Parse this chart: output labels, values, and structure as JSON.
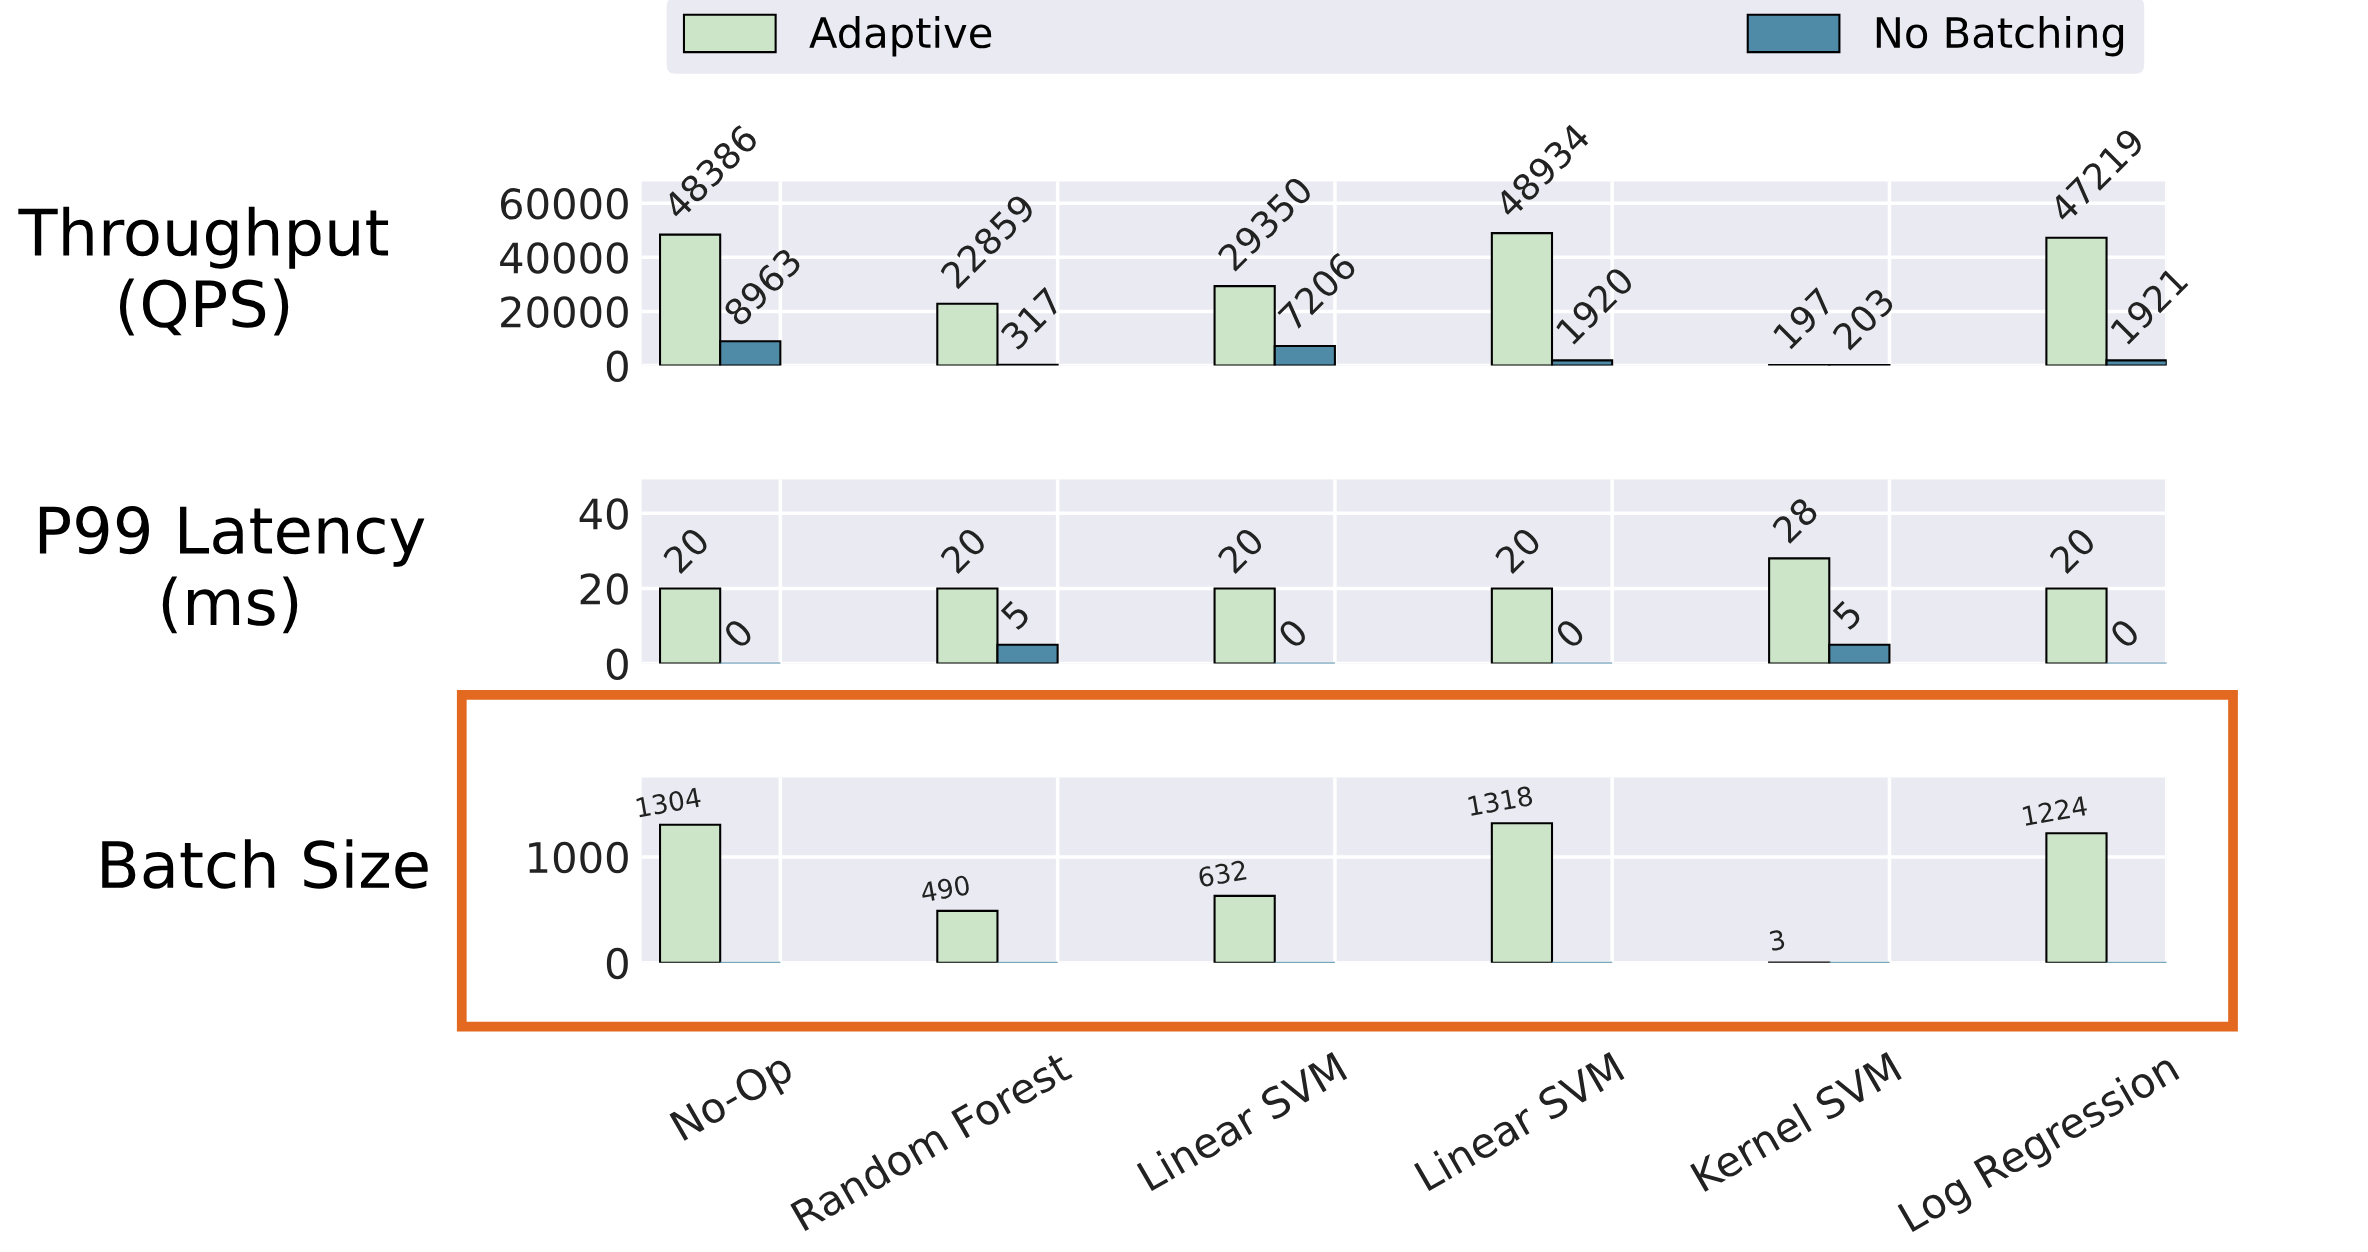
{
  "chart_data": [
    {
      "type": "bar",
      "ylabel": "Throughput\n(QPS)",
      "categories": [
        null,
        null,
        null,
        null,
        null,
        null
      ],
      "series": [
        {
          "name": "Adaptive",
          "color": "#cce5c8",
          "values": [
            48386,
            22859,
            29350,
            48934,
            197,
            47219
          ]
        },
        {
          "name": "No Batching",
          "color": "#4f8aa6",
          "values": [
            8963,
            317,
            7206,
            1920,
            203,
            1921
          ]
        }
      ],
      "ylim": [
        0,
        68000
      ],
      "yticks": [
        0,
        20000,
        40000,
        60000
      ],
      "grid": true,
      "legend": "top",
      "tick_labels": "y",
      "data_labels": true
    },
    {
      "type": "bar",
      "ylabel": "P99 Latency\n(ms)",
      "categories": [
        null,
        null,
        null,
        null,
        null,
        null
      ],
      "series": [
        {
          "color": "#cce5c8",
          "values": [
            20,
            20,
            20,
            20,
            28,
            20
          ]
        },
        {
          "color": "#4f8aa6",
          "values": [
            0,
            5,
            0,
            0,
            5,
            0
          ]
        }
      ],
      "ylim": [
        0,
        49
      ],
      "yticks": [
        0,
        20,
        40
      ],
      "grid": true,
      "tick_labels": "y",
      "data_labels": true
    },
    {
      "type": "bar",
      "ylabel": "Batch Size",
      "categories": [
        "No-Op",
        "Random Forest",
        "Linear SVM",
        "Linear SVM",
        "Kernel SVM",
        "Log Regression"
      ],
      "series": [
        {
          "color": "#cce5c8",
          "values": [
            1304,
            490,
            632,
            1318,
            3,
            1224
          ],
          "value_labels": [
            "1304",
            "490",
            "632",
            "1318",
            "3",
            "1224"
          ]
        },
        {
          "color": "#4f8aa6",
          "values": [
            0,
            0,
            0,
            0,
            0,
            0
          ],
          "value_labels": [
            null,
            null,
            null,
            null,
            null,
            null
          ]
        }
      ],
      "ylim": [
        0,
        1750
      ],
      "yticks": [
        0,
        1000
      ],
      "grid": true
    }
  ]
}
